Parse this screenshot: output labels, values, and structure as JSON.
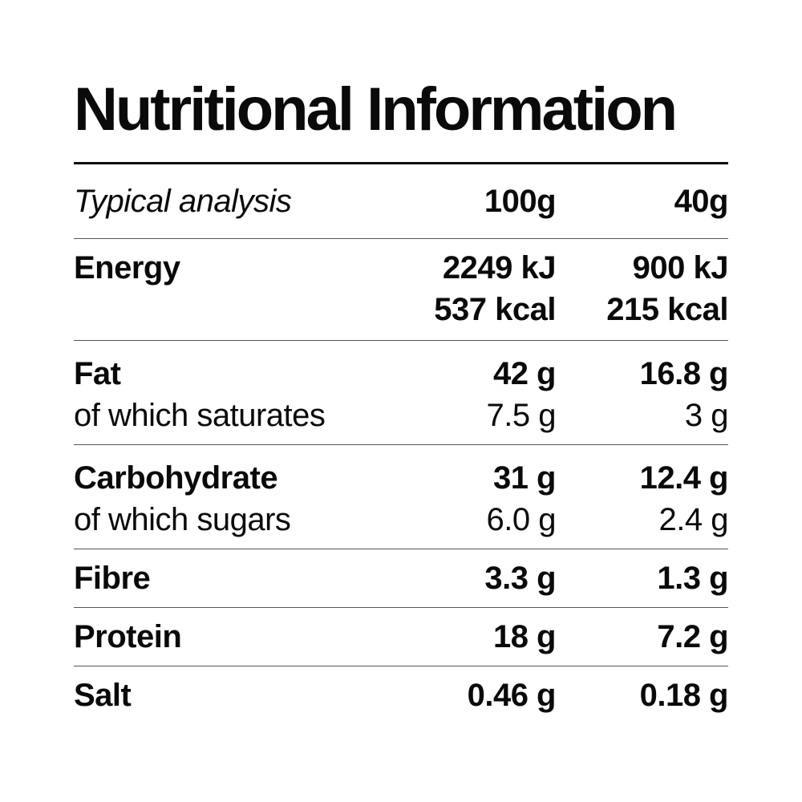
{
  "title": "Nutritional Information",
  "header": {
    "label": "Typical analysis",
    "col_a": "100g",
    "col_b": "40g"
  },
  "energy": {
    "label": "Energy",
    "a_kj": "2249 kJ",
    "a_kcal": "537 kcal",
    "b_kj": "900 kJ",
    "b_kcal": "215 kcal"
  },
  "fat": {
    "label": "Fat",
    "a": "42 g",
    "b": "16.8 g",
    "sub_label": "of which saturates",
    "sub_a": "7.5 g",
    "sub_b": "3 g"
  },
  "carbohydrate": {
    "label": "Carbohydrate",
    "a": "31 g",
    "b": "12.4 g",
    "sub_label": "of which sugars",
    "sub_a": "6.0 g",
    "sub_b": "2.4 g"
  },
  "fibre": {
    "label": "Fibre",
    "a": "3.3 g",
    "b": "1.3 g"
  },
  "protein": {
    "label": "Protein",
    "a": "18 g",
    "b": "7.2 g"
  },
  "salt": {
    "label": "Salt",
    "a": "0.46 g",
    "b": "0.18 g"
  }
}
